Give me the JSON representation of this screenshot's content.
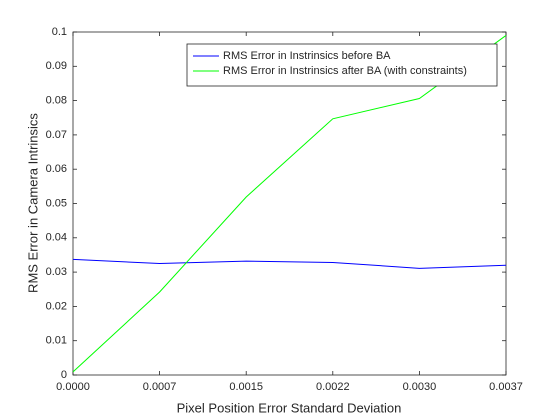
{
  "chart_data": {
    "type": "line",
    "xlabel": "Pixel Position Error Standard Deviation",
    "ylabel": "RMS Error in Camera Intrinsics",
    "x": [
      0,
      0.00074,
      0.00148,
      0.00222,
      0.00296,
      0.0037
    ],
    "series": [
      {
        "name": "RMS Error in Instrinsics before BA",
        "color": "#0000ff",
        "values": [
          0.0337,
          0.0325,
          0.0332,
          0.0328,
          0.0311,
          0.032
        ]
      },
      {
        "name": "RMS Error in Instrinsics after BA (with constraints)",
        "color": "#00ff00",
        "values": [
          0.0009,
          0.0242,
          0.0519,
          0.0747,
          0.0806,
          0.099
        ]
      }
    ],
    "xlim": [
      0,
      0.0037
    ],
    "ylim": [
      0,
      0.1
    ],
    "xticks": [
      {
        "value": 0,
        "label": "0.0000"
      },
      {
        "value": 0.00074,
        "label": "0.0007"
      },
      {
        "value": 0.00148,
        "label": "0.0015"
      },
      {
        "value": 0.00222,
        "label": "0.0022"
      },
      {
        "value": 0.00296,
        "label": "0.0030"
      },
      {
        "value": 0.0037,
        "label": "0.0037"
      }
    ],
    "yticks": [
      0,
      0.01,
      0.02,
      0.03,
      0.04,
      0.05,
      0.06,
      0.07,
      0.08,
      0.09,
      0.1
    ],
    "legend": "northeast",
    "grid": false
  }
}
